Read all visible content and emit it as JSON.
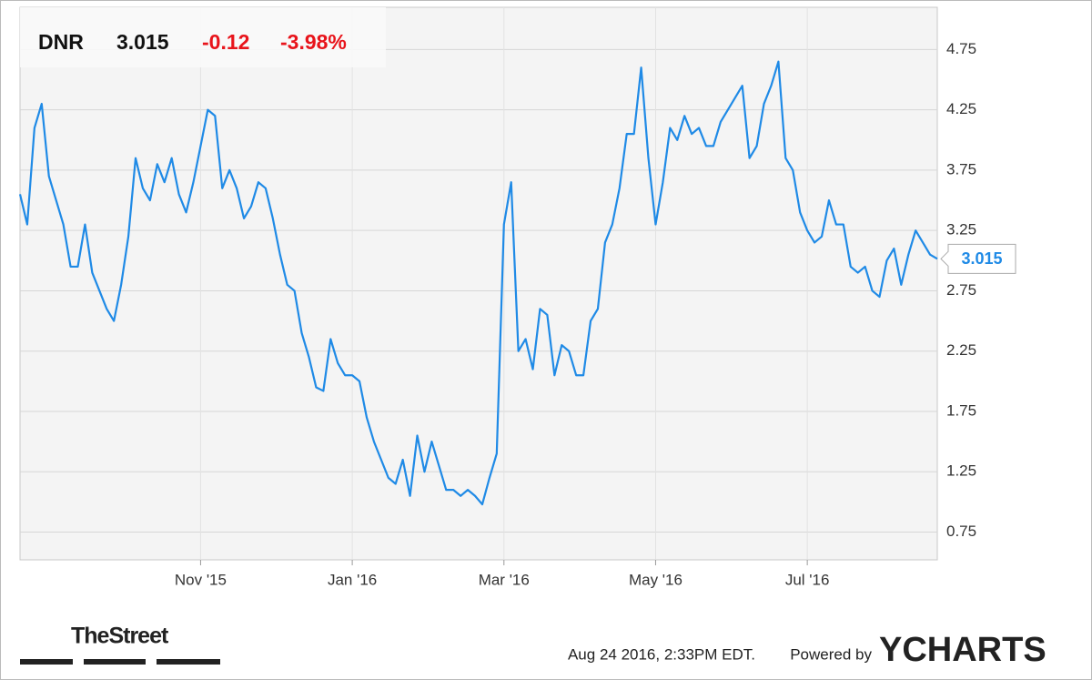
{
  "header": {
    "ticker": "DNR",
    "price": "3.015",
    "change": "-0.12",
    "change_pct": "-3.98%"
  },
  "chart_data": {
    "type": "line",
    "color": "#1f8ae6",
    "grid": true,
    "axis_side": "right",
    "categories": [
      null,
      null,
      null,
      null,
      null,
      null,
      null,
      null,
      null,
      null,
      null,
      null,
      null,
      null,
      null,
      null,
      null,
      null,
      null,
      null,
      null,
      null,
      null,
      null,
      null,
      "Nov '15",
      null,
      null,
      null,
      null,
      null,
      null,
      null,
      null,
      null,
      null,
      null,
      null,
      null,
      null,
      null,
      null,
      null,
      null,
      null,
      null,
      "Jan '16",
      null,
      null,
      null,
      null,
      null,
      null,
      null,
      null,
      null,
      null,
      null,
      null,
      null,
      null,
      null,
      null,
      null,
      null,
      null,
      null,
      "Mar '16",
      null,
      null,
      null,
      null,
      null,
      null,
      null,
      null,
      null,
      null,
      null,
      null,
      null,
      null,
      null,
      null,
      null,
      null,
      null,
      null,
      "May '16",
      null,
      null,
      null,
      null,
      null,
      null,
      null,
      null,
      null,
      null,
      null,
      null,
      null,
      null,
      null,
      null,
      null,
      null,
      null,
      null,
      "Jul '16",
      null,
      null,
      null,
      null,
      null,
      null,
      null,
      null,
      null,
      null,
      null,
      null,
      null,
      null,
      null,
      null,
      null,
      null
    ],
    "values": [
      3.55,
      3.3,
      4.1,
      4.3,
      3.7,
      3.5,
      3.3,
      2.95,
      2.95,
      3.3,
      2.9,
      2.75,
      2.6,
      2.5,
      2.8,
      3.2,
      3.85,
      3.6,
      3.5,
      3.8,
      3.65,
      3.85,
      3.55,
      3.4,
      3.65,
      3.95,
      4.25,
      4.2,
      3.6,
      3.75,
      3.6,
      3.35,
      3.45,
      3.65,
      3.6,
      3.35,
      3.05,
      2.8,
      2.75,
      2.4,
      2.2,
      1.95,
      1.92,
      2.35,
      2.15,
      2.05,
      2.05,
      2.0,
      1.7,
      1.5,
      1.35,
      1.2,
      1.15,
      1.35,
      1.05,
      1.55,
      1.25,
      1.5,
      1.3,
      1.1,
      1.1,
      1.05,
      1.1,
      1.05,
      0.98,
      1.2,
      1.4,
      3.3,
      3.65,
      2.25,
      2.35,
      2.1,
      2.6,
      2.55,
      2.05,
      2.3,
      2.25,
      2.05,
      2.05,
      2.5,
      2.6,
      3.15,
      3.3,
      3.6,
      4.05,
      4.05,
      4.6,
      3.85,
      3.3,
      3.65,
      4.1,
      4.0,
      4.2,
      4.05,
      4.1,
      3.95,
      3.95,
      4.15,
      4.25,
      4.35,
      4.45,
      3.85,
      3.95,
      4.3,
      4.45,
      4.65,
      3.85,
      3.75,
      3.4,
      3.25,
      3.15,
      3.2,
      3.5,
      3.3,
      3.3,
      2.95,
      2.9,
      2.95,
      2.75,
      2.7,
      3.0,
      3.1,
      2.8,
      3.05,
      3.25,
      3.15,
      3.05,
      3.015
    ],
    "ylim": [
      0.52,
      5.1
    ],
    "yticks": [
      0.75,
      1.25,
      1.75,
      2.25,
      2.75,
      3.25,
      3.75,
      4.25,
      4.75
    ]
  },
  "footer": {
    "brand": "TheStreet",
    "timestamp": "Aug 24 2016, 2:33PM EDT.",
    "powered": "Powered by",
    "provider": "YCHARTS"
  }
}
